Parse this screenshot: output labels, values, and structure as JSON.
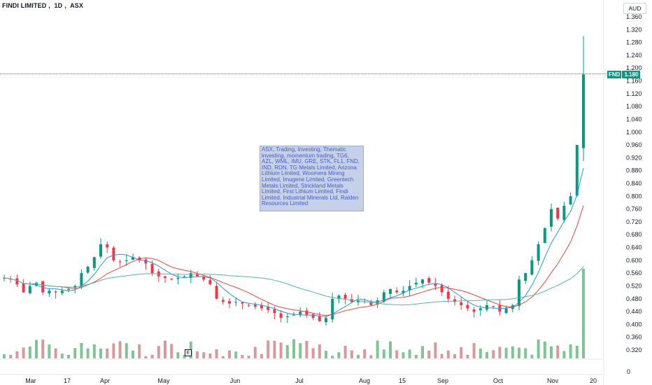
{
  "header": {
    "name": "FINDI LIMITED",
    "interval": "1D",
    "exchange": "ASX"
  },
  "currency": "AUD",
  "last_price": {
    "symbol": "FND",
    "value": "1.180",
    "color": "#089981"
  },
  "note_text": "ASX, Trading, Investing, Thematic investing, momentum trading, TG6, AZL, WML, IMU, GRE, STK, FL1, FND, IND, RDN, TG Metals Limited, Arizona Lithium Limited, Woomera Mining Limited, Imugene Limited, Greentech Metals Limited, Strickland Metals Limited, First Lithium Limited, Findi Limited, Industrial Minerals Ltd, Raiden Resources Limited",
  "earnings_marker": "E",
  "volume_zero_label": "0",
  "colors": {
    "up": "#089981",
    "down": "#f23645",
    "ma_fast": "#2196f3",
    "ma_mid": "#f44336",
    "ma_slow": "#4db6ac",
    "vol_up": "#7ec594",
    "vol_down": "#d69a9e"
  },
  "chart_data": {
    "type": "candlestick",
    "y_axis_ticks": [
      "1.360",
      "1.320",
      "1.280",
      "1.240",
      "1.200",
      "1.160",
      "1.120",
      "1.080",
      "1.040",
      "1.000",
      "0.960",
      "0.920",
      "0.880",
      "0.840",
      "0.800",
      "0.760",
      "0.720",
      "0.680",
      "0.640",
      "0.600",
      "0.560",
      "0.520",
      "0.480",
      "0.440",
      "0.400",
      "0.360",
      "0.320"
    ],
    "ylim": [
      0.3,
      1.38
    ],
    "x_axis_labels": [
      "Mar",
      "17",
      "Apr",
      "May",
      "Jun",
      "Jul",
      "Aug",
      "15",
      "Sep",
      "Oct",
      "Nov",
      "20"
    ],
    "series": [
      {
        "name": "price",
        "ohlc_close": [
          0.545,
          0.54,
          0.525,
          0.5,
          0.52,
          0.53,
          0.5,
          0.505,
          0.5,
          0.505,
          0.51,
          0.52,
          0.56,
          0.58,
          0.61,
          0.65,
          0.64,
          0.6,
          0.595,
          0.6,
          0.61,
          0.6,
          0.59,
          0.56,
          0.55,
          0.545,
          0.54,
          0.545,
          0.55,
          0.56,
          0.55,
          0.54,
          0.525,
          0.48,
          0.47,
          0.465,
          0.47,
          0.465,
          0.46,
          0.455,
          0.45,
          0.445,
          0.435,
          0.42,
          0.425,
          0.43,
          0.44,
          0.43,
          0.42,
          0.41,
          0.42,
          0.48,
          0.49,
          0.48,
          0.47,
          0.475,
          0.47,
          0.46,
          0.475,
          0.5,
          0.51,
          0.5,
          0.505,
          0.52,
          0.53,
          0.54,
          0.53,
          0.52,
          0.5,
          0.48,
          0.47,
          0.46,
          0.45,
          0.44,
          0.45,
          0.46,
          0.455,
          0.44,
          0.45,
          0.46,
          0.54,
          0.56,
          0.6,
          0.65,
          0.7,
          0.76,
          0.73,
          0.77,
          0.8,
          0.96,
          1.18
        ]
      }
    ]
  }
}
